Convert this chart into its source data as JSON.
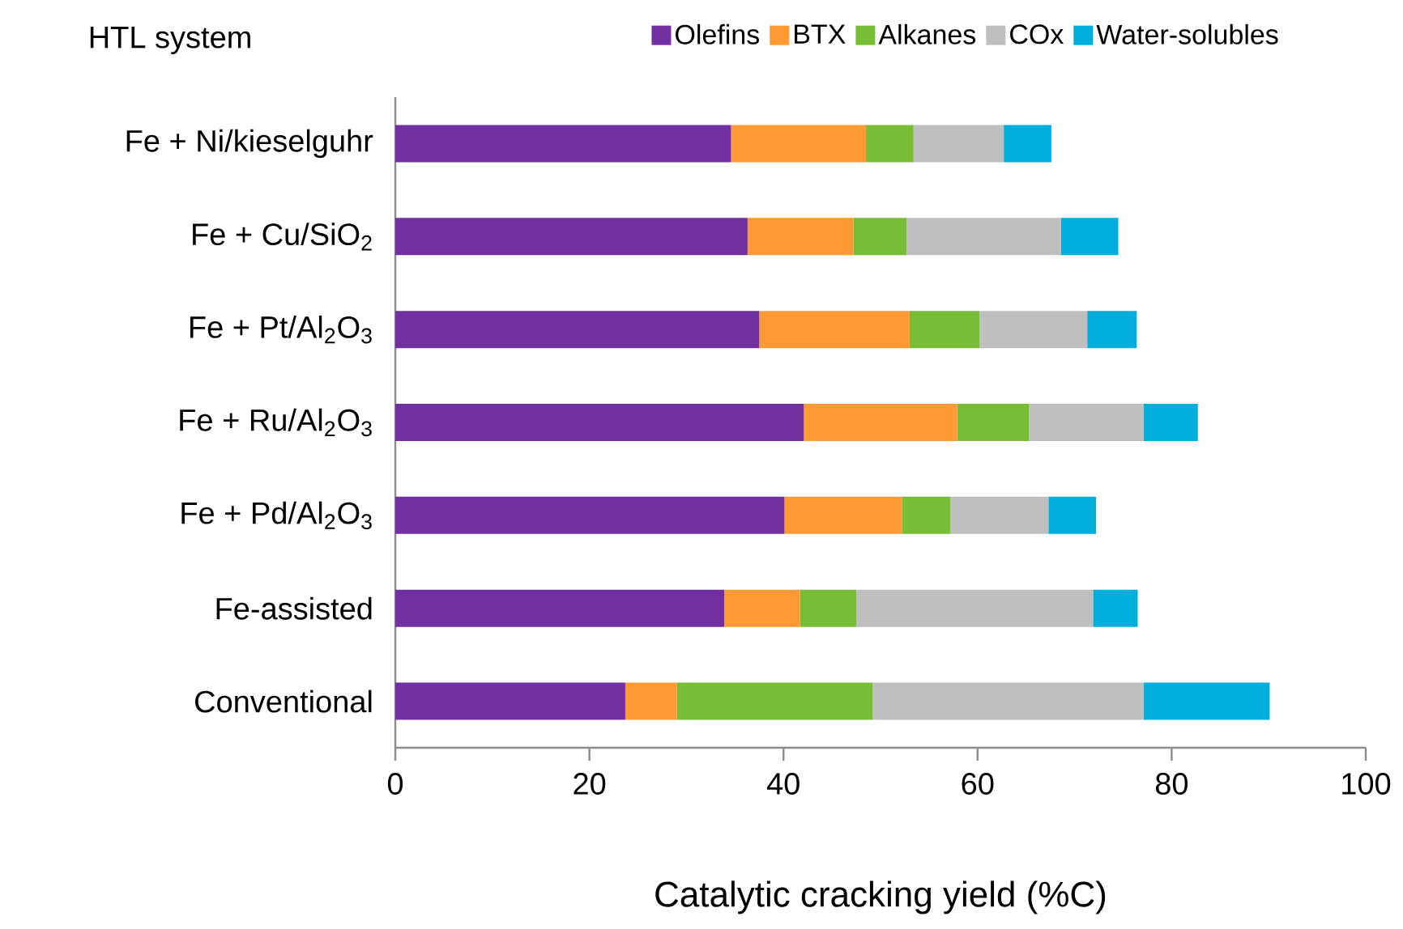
{
  "chart_data": {
    "type": "bar",
    "orientation": "horizontal",
    "stacked": true,
    "ylabel": "HTL system",
    "xlabel": "Catalytic cracking yield (%C)",
    "categories": [
      "Fe + Ni/kieselguhr",
      "Fe + Cu/SiO$_{2}$",
      "Fe + Pt/Al$_{2}$O$_{3}$",
      "Fe + Ru/Al$_{2}$O$_{3}$",
      "Fe + Pd/Al$_{2}$O$_{3}$",
      "Fe-assisted",
      "Conventional"
    ],
    "series": [
      {
        "name": "Olefins",
        "color": "#7030a0",
        "values": [
          34.6,
          36.3,
          37.5,
          42.1,
          40.1,
          33.9,
          23.7
        ]
      },
      {
        "name": "BTX",
        "color": "#ff9933",
        "values": [
          13.9,
          10.9,
          15.5,
          15.8,
          12.1,
          7.8,
          5.3
        ]
      },
      {
        "name": "Alkanes",
        "color": "#77bd35",
        "values": [
          4.9,
          5.5,
          7.2,
          7.4,
          5.0,
          5.8,
          20.2
        ]
      },
      {
        "name": "COx",
        "color": "#bfbfbf",
        "values": [
          9.3,
          15.9,
          11.1,
          11.8,
          10.1,
          24.4,
          27.9
        ]
      },
      {
        "name": "Water-solubles",
        "color": "#00aedb",
        "values": [
          4.9,
          5.9,
          5.1,
          5.6,
          4.9,
          4.6,
          13.0
        ]
      }
    ],
    "xlim": [
      0,
      100
    ],
    "xticks": [
      0,
      20,
      40,
      60,
      80,
      100
    ],
    "legend": "top",
    "grid": false
  }
}
